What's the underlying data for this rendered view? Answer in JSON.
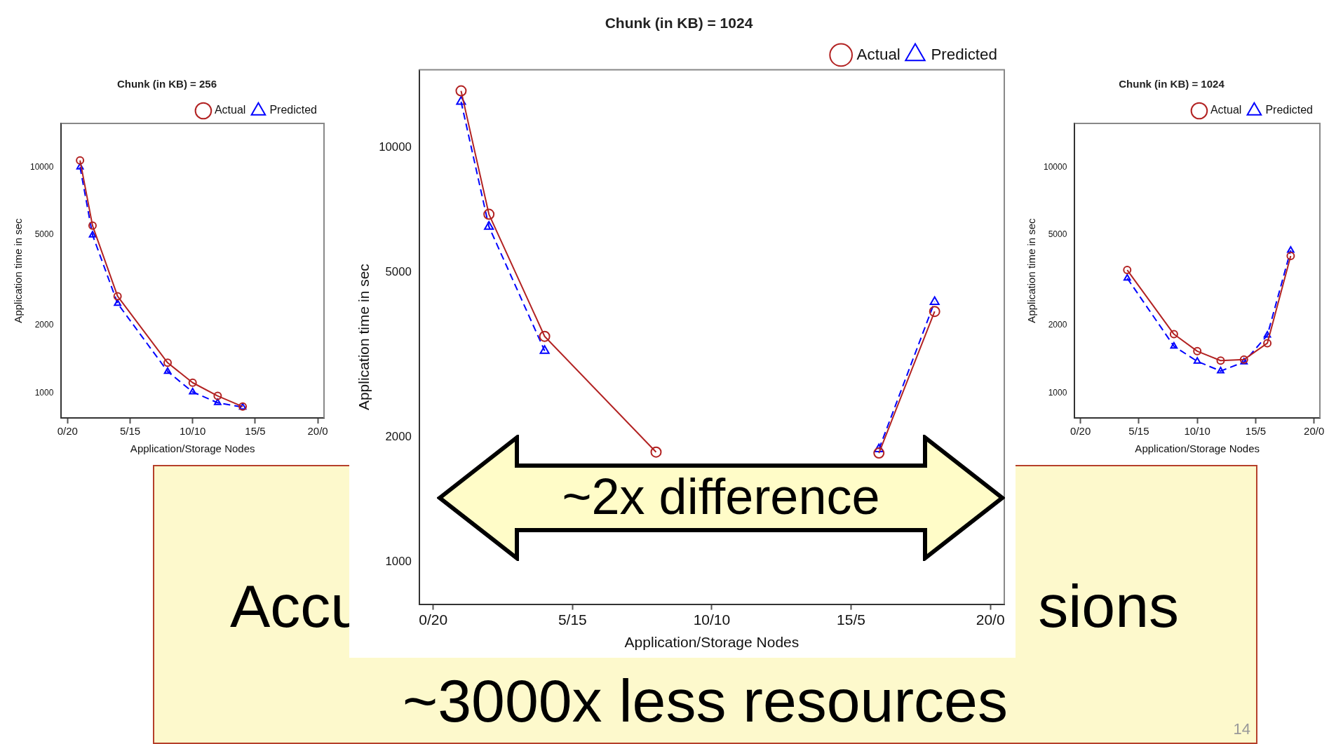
{
  "chart_data": [
    {
      "type": "line",
      "title": "Chunk (in KB) = 256",
      "xlabel": "Application/Storage Nodes",
      "ylabel": "Application time in sec",
      "categories": [
        "0/20",
        null,
        null,
        null,
        null,
        "5/15",
        null,
        null,
        null,
        null,
        "10/10",
        null,
        null,
        null,
        null,
        "15/5",
        null,
        null,
        null,
        null,
        "20/0"
      ],
      "ylim": [
        775,
        15600
      ],
      "yticks": [
        1000,
        2000,
        5000,
        10000
      ],
      "log": true,
      "legend": "top right",
      "grid": false,
      "series": [
        {
          "name": "Actual",
          "color": "#b22222",
          "marker": "circle",
          "line_style": "solid",
          "values": [
            null,
            10700,
            5500,
            null,
            2680,
            null,
            null,
            null,
            1360,
            null,
            1110,
            null,
            970,
            null,
            870,
            null,
            null,
            null,
            null,
            null,
            null
          ]
        },
        {
          "name": "Predicted",
          "color": "#0000ff",
          "marker": "triangle",
          "line_style": "dashed",
          "values": [
            null,
            10000,
            5000,
            null,
            2490,
            null,
            null,
            null,
            1245,
            null,
            1010,
            null,
            905,
            null,
            865,
            null,
            null,
            null,
            null,
            null,
            null
          ]
        }
      ]
    },
    {
      "type": "line",
      "title": "Chunk (in KB) = 1024",
      "xlabel": "Application/Storage Nodes",
      "ylabel": "Application time in sec",
      "categories": [
        "0/20",
        null,
        null,
        null,
        null,
        "5/15",
        null,
        null,
        null,
        null,
        "10/10",
        null,
        null,
        null,
        null,
        "15/5",
        null,
        null,
        null,
        null,
        "20/0"
      ],
      "ylim": [
        790,
        15400
      ],
      "yticks": [
        1000,
        2000,
        5000,
        10000
      ],
      "log": true,
      "legend": "top right",
      "grid": false,
      "annotations": [
        "~2x difference"
      ],
      "series": [
        {
          "name": "Actual",
          "color": "#b22222",
          "marker": "circle",
          "line_style": "solid",
          "values": [
            null,
            13700,
            6900,
            null,
            3500,
            null,
            null,
            null,
            1840,
            null,
            null,
            null,
            null,
            null,
            null,
            null,
            1830,
            null,
            4020,
            null,
            null
          ]
        },
        {
          "name": "Predicted",
          "color": "#0000ff",
          "marker": "triangle",
          "line_style": "dashed",
          "values": [
            null,
            12900,
            6440,
            null,
            3230,
            null,
            null,
            null,
            null,
            null,
            null,
            null,
            null,
            null,
            null,
            null,
            1870,
            null,
            4240,
            null,
            null
          ]
        }
      ]
    },
    {
      "type": "line",
      "title": "Chunk (in KB) = 1024",
      "xlabel": "Application/Storage Nodes",
      "ylabel": "Application time in sec",
      "categories": [
        "0/20",
        null,
        null,
        null,
        null,
        "5/15",
        null,
        null,
        null,
        null,
        "10/10",
        null,
        null,
        null,
        null,
        "15/5",
        null,
        null,
        null,
        null,
        "20/0"
      ],
      "ylim": [
        775,
        15600
      ],
      "yticks": [
        1000,
        2000,
        5000,
        10000
      ],
      "log": true,
      "legend": "top right",
      "grid": false,
      "series": [
        {
          "name": "Actual",
          "color": "#b22222",
          "marker": "circle",
          "line_style": "solid",
          "values": [
            null,
            null,
            null,
            null,
            3500,
            null,
            null,
            null,
            1820,
            null,
            1530,
            null,
            1390,
            null,
            1405,
            null,
            1660,
            null,
            4040,
            null,
            null
          ]
        },
        {
          "name": "Predicted",
          "color": "#0000ff",
          "marker": "triangle",
          "line_style": "dashed",
          "values": [
            null,
            null,
            null,
            null,
            3220,
            null,
            null,
            null,
            1610,
            null,
            1380,
            null,
            1250,
            null,
            1370,
            null,
            1800,
            null,
            4280,
            null,
            null
          ]
        }
      ]
    },
    {
      "type": "other",
      "annotations": [
        "Accu",
        "sions",
        "~3000x less resources",
        "14"
      ]
    }
  ]
}
